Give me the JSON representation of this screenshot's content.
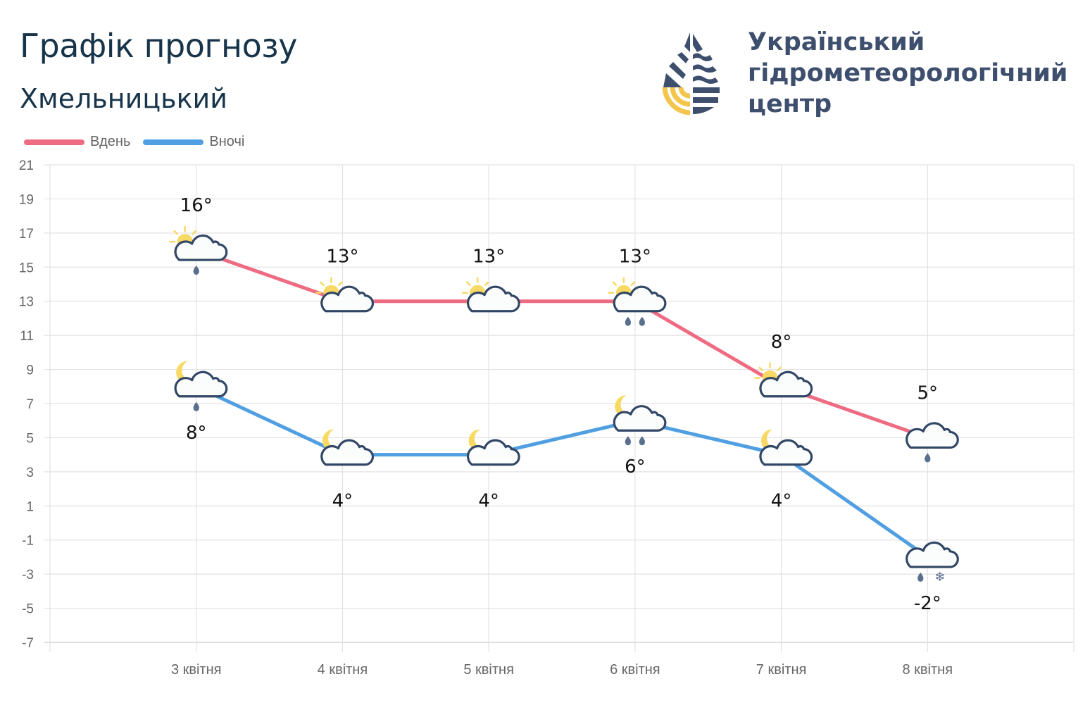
{
  "header": {
    "title": "Графік прогнозу",
    "city": "Хмельницький"
  },
  "org": {
    "line1": "Український",
    "line2": "гідрометеорологічний",
    "line3": "центр"
  },
  "colors": {
    "day": "#ee6b82",
    "night": "#4f9fe2",
    "grid": "#e2e2e2",
    "text": "#666666"
  },
  "chart_data": {
    "type": "line",
    "categories": [
      "3 квітня",
      "4 квітня",
      "5 квітня",
      "6 квітня",
      "7 квітня",
      "8 квітня"
    ],
    "ylim": [
      -7,
      21
    ],
    "yticks": [
      21,
      19,
      17,
      15,
      13,
      11,
      9,
      7,
      5,
      3,
      1,
      -1,
      -3,
      -5,
      -7
    ],
    "grid": true,
    "legend": "top-left",
    "series": [
      {
        "name": "Вдень",
        "values": [
          16,
          13,
          13,
          13,
          8,
          5
        ],
        "labels": [
          "16°",
          "13°",
          "13°",
          "13°",
          "8°",
          "5°"
        ],
        "icons": [
          "partly-cloudy-rain",
          "partly-cloudy",
          "partly-cloudy",
          "partly-cloudy-rain-heavy",
          "partly-cloudy",
          "cloudy-rain"
        ]
      },
      {
        "name": "Вночі",
        "values": [
          8,
          4,
          4,
          6,
          4,
          -2
        ],
        "labels": [
          "8°",
          "4°",
          "4°",
          "6°",
          "4°",
          "-2°"
        ],
        "icons": [
          "night-cloudy-rain",
          "night-cloudy",
          "night-cloudy",
          "night-cloudy-rain-heavy",
          "night-cloudy",
          "cloudy-rain-snow"
        ]
      }
    ]
  }
}
